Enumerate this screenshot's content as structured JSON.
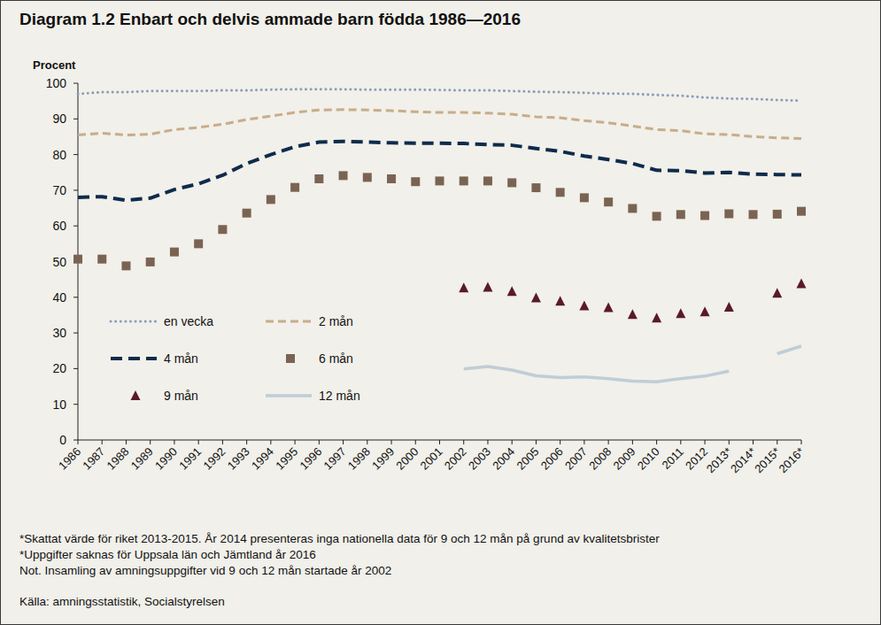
{
  "chart_data": {
    "type": "line",
    "title": "Diagram 1.2 Enbart och delvis ammade barn födda 1986—2016",
    "y_label": "Procent",
    "categories": [
      "1986",
      "1987",
      "1988",
      "1989",
      "1990",
      "1991",
      "1992",
      "1993",
      "1994",
      "1995",
      "1996",
      "1997",
      "1998",
      "1999",
      "2000",
      "2001",
      "2002",
      "2003",
      "2004",
      "2005",
      "2006",
      "2007",
      "2008",
      "2009",
      "2010",
      "2011",
      "2012",
      "2013*",
      "2014*",
      "2015*",
      "2016*"
    ],
    "ylim": [
      0,
      100
    ],
    "yticks": [
      0,
      10,
      20,
      30,
      40,
      50,
      60,
      70,
      80,
      90,
      100
    ],
    "grid": false,
    "legend": "bottom-left",
    "series": [
      {
        "name": "en vecka",
        "color": "#8d9db9",
        "line_style": "dotted",
        "marker": "none",
        "values": [
          97.0,
          97.5,
          97.5,
          97.8,
          97.8,
          97.8,
          98.0,
          98.0,
          98.2,
          98.3,
          98.3,
          98.3,
          98.2,
          98.2,
          98.2,
          98.1,
          98.0,
          98.0,
          97.8,
          97.6,
          97.5,
          97.3,
          97.1,
          97.0,
          96.7,
          96.5,
          96.0,
          95.7,
          95.6,
          95.3,
          95.1
        ]
      },
      {
        "name": "2 mån",
        "color": "#c8ad8a",
        "line_style": "dashed",
        "marker": "none",
        "values": [
          85.5,
          86.0,
          85.5,
          85.7,
          87.0,
          87.6,
          88.5,
          89.8,
          90.8,
          91.8,
          92.5,
          92.6,
          92.5,
          92.3,
          92.0,
          91.8,
          91.8,
          91.6,
          91.3,
          90.6,
          90.3,
          89.5,
          88.9,
          88.0,
          87.0,
          86.7,
          85.8,
          85.6,
          85.0,
          84.7,
          84.5
        ]
      },
      {
        "name": "4 mån",
        "color": "#0f2b4c",
        "line_style": "dashed",
        "marker": "none",
        "values": [
          68.0,
          68.2,
          67.2,
          67.8,
          70.2,
          71.8,
          74.2,
          77.5,
          80.0,
          82.2,
          83.5,
          83.7,
          83.5,
          83.3,
          83.2,
          83.2,
          83.1,
          82.8,
          82.6,
          81.7,
          80.9,
          79.6,
          78.6,
          77.5,
          75.6,
          75.5,
          74.8,
          75.0,
          74.5,
          74.4,
          74.3
        ]
      },
      {
        "name": "6 mån",
        "color": "#7b6353",
        "line_style": "none",
        "marker": "square",
        "values": [
          50.7,
          50.7,
          48.8,
          49.9,
          52.7,
          55.0,
          59.0,
          63.6,
          67.4,
          70.8,
          73.2,
          74.1,
          73.6,
          73.2,
          72.4,
          72.6,
          72.6,
          72.6,
          72.1,
          70.7,
          69.4,
          67.9,
          66.7,
          64.9,
          62.7,
          63.2,
          62.9,
          63.4,
          63.2,
          63.3,
          64.1
        ]
      },
      {
        "name": "9 mån",
        "color": "#5a1a26",
        "line_style": "none",
        "marker": "triangle",
        "values": [
          null,
          null,
          null,
          null,
          null,
          null,
          null,
          null,
          null,
          null,
          null,
          null,
          null,
          null,
          null,
          null,
          42.6,
          42.8,
          41.6,
          39.8,
          38.9,
          37.6,
          37.1,
          35.2,
          34.2,
          35.4,
          35.9,
          37.2,
          null,
          41.1,
          43.8
        ]
      },
      {
        "name": "12 mån",
        "color": "#bfcdd6",
        "line_style": "solid",
        "marker": "none",
        "values": [
          null,
          null,
          null,
          null,
          null,
          null,
          null,
          null,
          null,
          null,
          null,
          null,
          null,
          null,
          null,
          null,
          19.9,
          20.6,
          19.6,
          18.0,
          17.5,
          17.7,
          17.2,
          16.5,
          16.3,
          17.2,
          17.9,
          19.3,
          null,
          24.2,
          26.3
        ]
      }
    ],
    "notes": [
      "*Skattat värde för riket 2013-2015. År 2014 presenteras inga nationella data för 9 och 12 mån på grund av kvalitetsbrister",
      "*Uppgifter saknas för Uppsala län och Jämtland år 2016",
      "Not. Insamling av amningsuppgifter vid 9 och 12 mån startade år 2002"
    ],
    "source": "Källa: amningsstatistik, Socialstyrelsen"
  }
}
